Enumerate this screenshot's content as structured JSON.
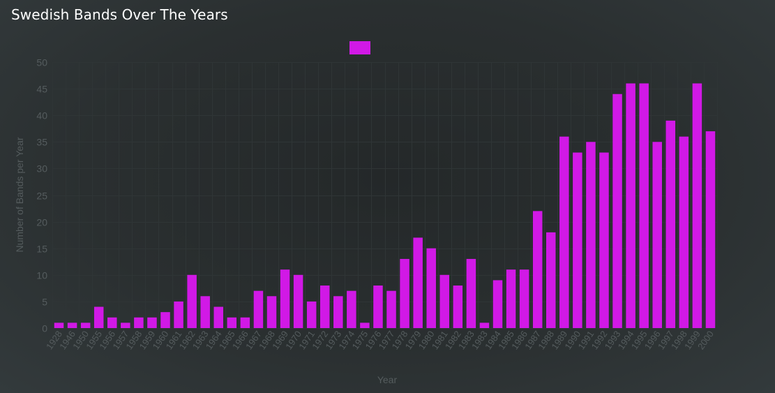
{
  "page": {
    "title": "Swedish Bands Over The Years"
  },
  "chart_data": {
    "type": "bar",
    "title": "",
    "xlabel": "Year",
    "ylabel": "Number of Bands per Year",
    "ylim": [
      0,
      50
    ],
    "yticks": [
      0,
      5,
      10,
      15,
      20,
      25,
      30,
      35,
      40,
      45,
      50
    ],
    "grid": true,
    "legend": {
      "position": "top-center",
      "label": ""
    },
    "colors": {
      "bar": "#d119e6",
      "grid": "#2f3536",
      "tick_text": "#555c5e",
      "axis_label": "#555c5e"
    },
    "categories": [
      "1928",
      "1946",
      "1950",
      "1955",
      "1956",
      "1957",
      "1958",
      "1959",
      "1960",
      "1961",
      "1962",
      "1963",
      "1964",
      "1965",
      "1966",
      "1967",
      "1968",
      "1969",
      "1970",
      "1971",
      "1972",
      "1973",
      "1974",
      "1975",
      "1976",
      "1977",
      "1978",
      "1979",
      "1980",
      "1981",
      "1982",
      "1983",
      "1983",
      "1984",
      "1985",
      "1986",
      "1987",
      "1988",
      "1989",
      "1990",
      "1991",
      "1992",
      "1993",
      "1994",
      "1995",
      "1996",
      "1997",
      "1998",
      "1999",
      "2000"
    ],
    "values": [
      1,
      1,
      1,
      4,
      2,
      1,
      2,
      2,
      3,
      5,
      10,
      6,
      4,
      2,
      2,
      7,
      6,
      11,
      10,
      5,
      8,
      6,
      7,
      1,
      8,
      7,
      13,
      17,
      15,
      10,
      8,
      13,
      1,
      9,
      11,
      11,
      22,
      18,
      36,
      33,
      35,
      33,
      44,
      46,
      46,
      35,
      39,
      36,
      46,
      37
    ]
  }
}
